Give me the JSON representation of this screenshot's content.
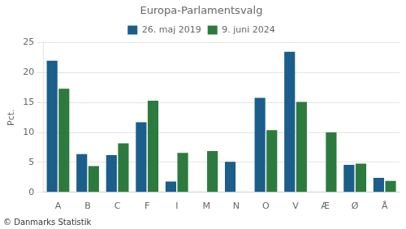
{
  "chart_data": {
    "type": "bar",
    "title": "Europa-Parlamentsvalg",
    "categories": [
      "A",
      "B",
      "C",
      "F",
      "I",
      "M",
      "N",
      "O",
      "V",
      "Æ",
      "Ø",
      "Å"
    ],
    "series": [
      {
        "name": "26. maj 2019",
        "color": "#1B5E8B",
        "values": [
          22.0,
          6.4,
          6.2,
          11.7,
          1.8,
          0,
          5.1,
          15.8,
          23.5,
          0,
          4.6,
          2.4
        ]
      },
      {
        "name": "9. juni 2024",
        "color": "#2D7A3E",
        "values": [
          17.3,
          4.4,
          8.2,
          15.3,
          6.6,
          6.9,
          0,
          10.4,
          15.1,
          10.0,
          4.8,
          1.9
        ]
      }
    ],
    "ylabel": "Pct.",
    "ylim": [
      0,
      25
    ],
    "yticks": [
      0,
      5,
      10,
      15,
      20,
      25
    ],
    "grid": true,
    "legend": "top",
    "footer": "© Danmarks Statistik"
  }
}
